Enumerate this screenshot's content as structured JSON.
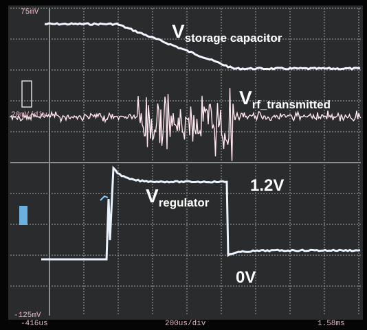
{
  "screen": {
    "top_level": "75mV",
    "scale": "20mV/div",
    "bottom_level": "-125mV",
    "start_time": "-416us",
    "time_scale": "200us/div",
    "end_time": "1.58ms"
  },
  "annotations": {
    "storage": {
      "main": "V",
      "sub": "storage capacitor"
    },
    "rf": {
      "main": "V",
      "sub": "rf_transmitted"
    },
    "regulator": {
      "main": "V",
      "sub": "regulator"
    },
    "high_level": "1.2V",
    "low_level": "0V"
  }
}
